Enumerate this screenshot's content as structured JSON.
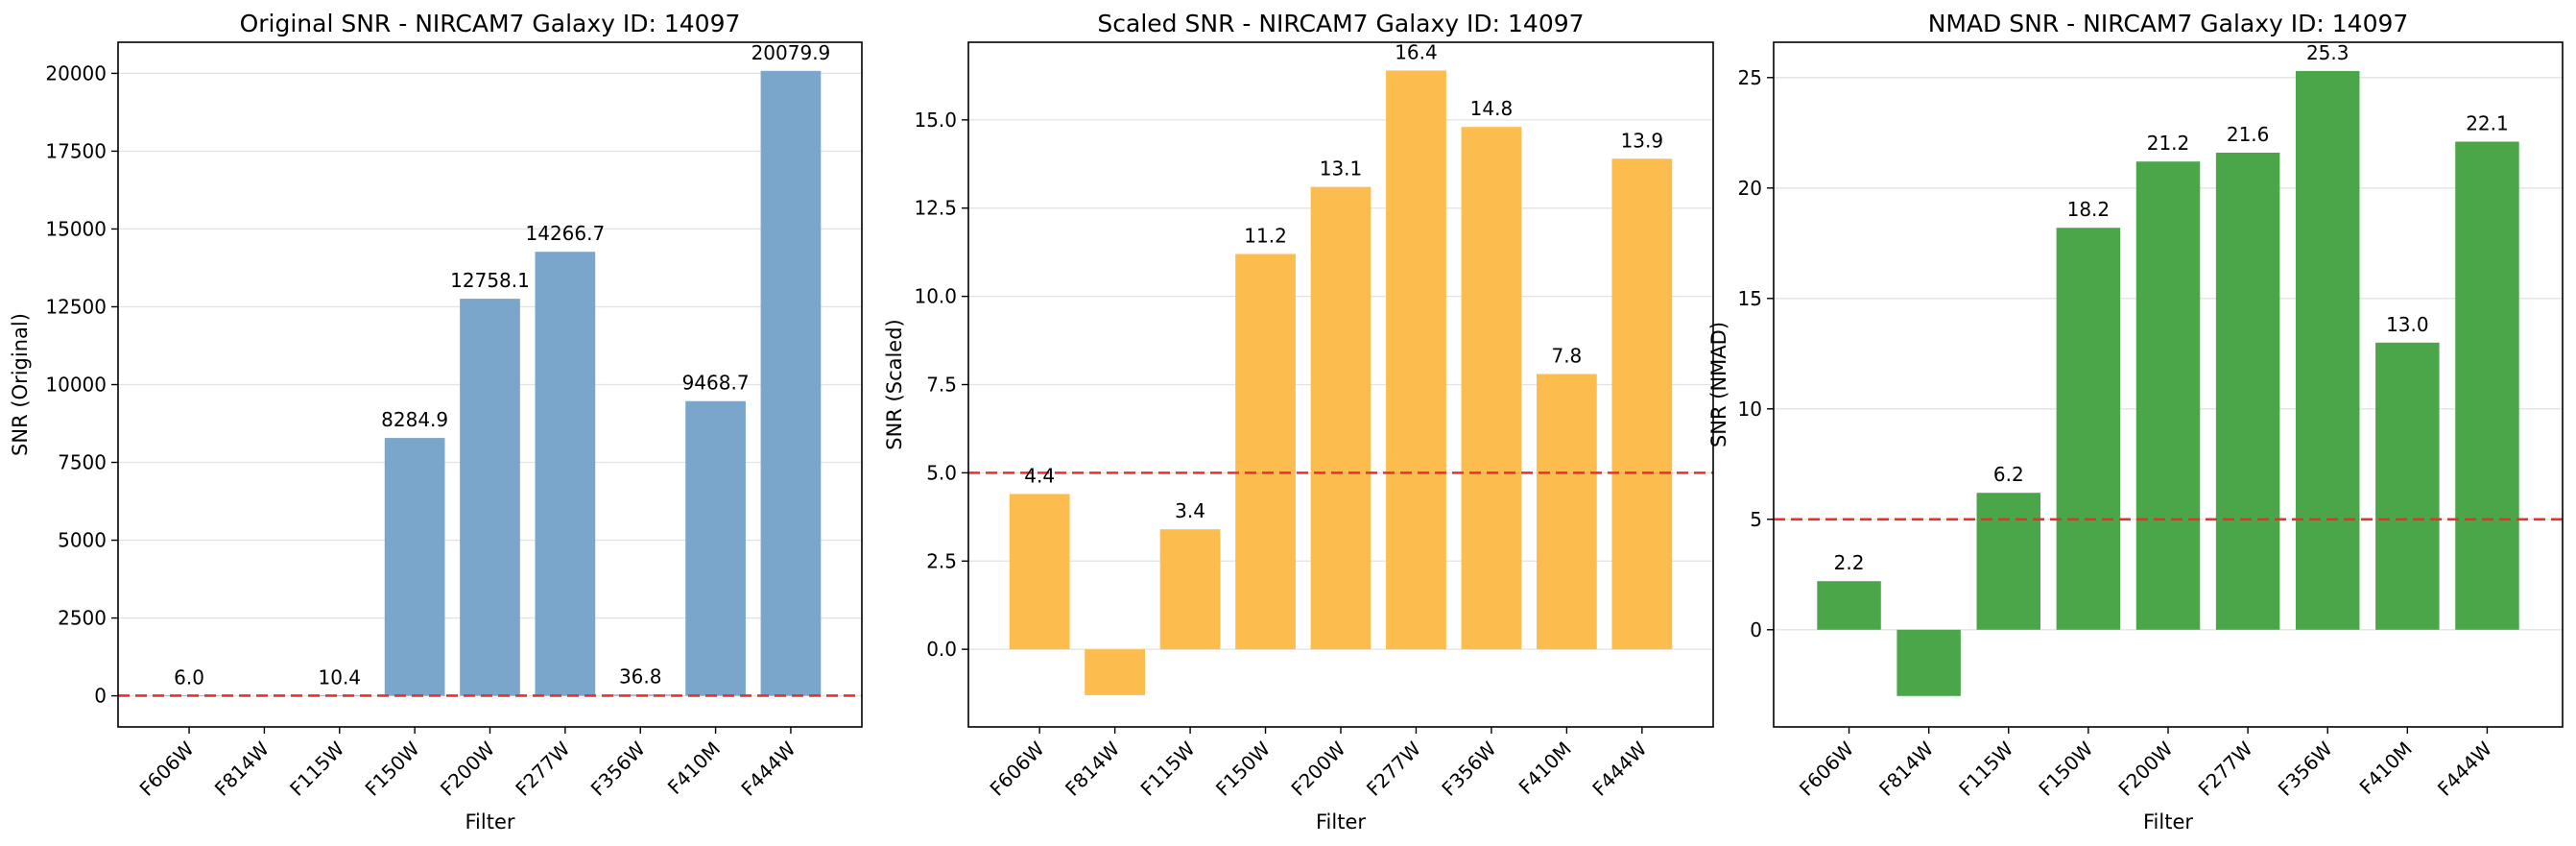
{
  "chart_data": [
    {
      "type": "bar",
      "title": "Original SNR - NIRCAM7 Galaxy ID: 14097",
      "xlabel": "Filter",
      "ylabel": "SNR (Original)",
      "categories": [
        "F606W",
        "F814W",
        "F115W",
        "F150W",
        "F200W",
        "F277W",
        "F356W",
        "F410M",
        "F444W"
      ],
      "values": [
        6.0,
        null,
        10.4,
        8284.9,
        12758.1,
        14266.7,
        36.8,
        9468.7,
        20079.9
      ],
      "value_labels": [
        "6.0",
        "",
        "10.4",
        "8284.9",
        "12758.1",
        "14266.7",
        "36.8",
        "9468.7",
        "20079.9"
      ],
      "ylim": [
        -1000,
        21000
      ],
      "yticks": [
        0,
        2500,
        5000,
        7500,
        10000,
        12500,
        15000,
        17500,
        20000
      ],
      "threshold": 5,
      "color": "#7ba6cb",
      "grid": "y"
    },
    {
      "type": "bar",
      "title": "Scaled SNR - NIRCAM7 Galaxy ID: 14097",
      "xlabel": "Filter",
      "ylabel": "SNR (Scaled)",
      "categories": [
        "F606W",
        "F814W",
        "F115W",
        "F150W",
        "F200W",
        "F277W",
        "F356W",
        "F410M",
        "F444W"
      ],
      "values": [
        4.4,
        -1.3,
        3.4,
        11.2,
        13.1,
        16.4,
        14.8,
        7.8,
        13.9
      ],
      "value_labels": [
        "4.4",
        "",
        "3.4",
        "11.2",
        "13.1",
        "16.4",
        "14.8",
        "7.8",
        "13.9"
      ],
      "ylim": [
        -2.2,
        17.2
      ],
      "yticks": [
        0.0,
        2.5,
        5.0,
        7.5,
        10.0,
        12.5,
        15.0
      ],
      "ytick_labels": [
        "0.0",
        "2.5",
        "5.0",
        "7.5",
        "10.0",
        "12.5",
        "15.0"
      ],
      "threshold": 5,
      "color": "#fdbd4e",
      "grid": "y"
    },
    {
      "type": "bar",
      "title": "NMAD SNR - NIRCAM7 Galaxy ID: 14097",
      "xlabel": "Filter",
      "ylabel": "SNR (NMAD)",
      "categories": [
        "F606W",
        "F814W",
        "F115W",
        "F150W",
        "F200W",
        "F277W",
        "F356W",
        "F410M",
        "F444W"
      ],
      "values": [
        2.2,
        -3.0,
        6.2,
        18.2,
        21.2,
        21.6,
        25.3,
        13.0,
        22.1
      ],
      "value_labels": [
        "2.2",
        "",
        "6.2",
        "18.2",
        "21.2",
        "21.6",
        "25.3",
        "13.0",
        "22.1"
      ],
      "ylim": [
        -4.4,
        26.6
      ],
      "yticks": [
        0,
        5,
        10,
        15,
        20,
        25
      ],
      "threshold": 5,
      "color": "#4ba64a",
      "grid": "y"
    }
  ]
}
